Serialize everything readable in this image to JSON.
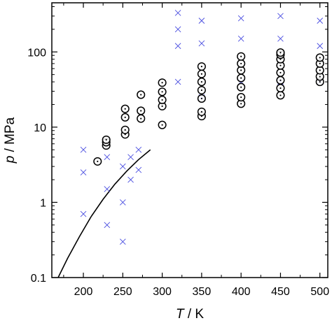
{
  "chart_data": {
    "type": "scatter",
    "title": "",
    "xlabel_symbol": "T",
    "xlabel_unit": " / K",
    "ylabel_symbol": "p",
    "ylabel_unit": " / MPa",
    "xlim": [
      160,
      510
    ],
    "ylim": [
      0.1,
      450
    ],
    "yscale": "log",
    "grid": false,
    "legend": "none",
    "x_ticks": [
      200,
      250,
      300,
      350,
      400,
      450,
      500
    ],
    "x_tick_labels": [
      "200",
      "250",
      "300",
      "350",
      "400",
      "450",
      "500"
    ],
    "y_ticks": [
      0.1,
      1,
      10,
      100
    ],
    "y_tick_labels": [
      "0.1",
      "1",
      "10",
      "100"
    ],
    "colors": {
      "cross": "#4a4ee0",
      "circle": "#000000",
      "curve": "#000000",
      "axes": "#000000"
    },
    "circle_points": [
      {
        "x": 218,
        "y": 3.5
      },
      {
        "x": 229,
        "y": 5.7
      },
      {
        "x": 229,
        "y": 6.3
      },
      {
        "x": 229,
        "y": 6.8
      },
      {
        "x": 253,
        "y": 8.0
      },
      {
        "x": 253,
        "y": 9.2
      },
      {
        "x": 253,
        "y": 13.5
      },
      {
        "x": 253,
        "y": 17.5
      },
      {
        "x": 273,
        "y": 13.0
      },
      {
        "x": 273,
        "y": 16.5
      },
      {
        "x": 273,
        "y": 27.0
      },
      {
        "x": 300,
        "y": 10.7
      },
      {
        "x": 300,
        "y": 19.0
      },
      {
        "x": 300,
        "y": 23.0
      },
      {
        "x": 300,
        "y": 29.5
      },
      {
        "x": 300,
        "y": 39.0
      },
      {
        "x": 350,
        "y": 14.0
      },
      {
        "x": 350,
        "y": 16.0
      },
      {
        "x": 350,
        "y": 24.0
      },
      {
        "x": 350,
        "y": 31.0
      },
      {
        "x": 350,
        "y": 40.0
      },
      {
        "x": 350,
        "y": 51.0
      },
      {
        "x": 350,
        "y": 64.0
      },
      {
        "x": 400,
        "y": 20.5
      },
      {
        "x": 400,
        "y": 25.0
      },
      {
        "x": 400,
        "y": 34.0
      },
      {
        "x": 400,
        "y": 45.0
      },
      {
        "x": 400,
        "y": 57.0
      },
      {
        "x": 400,
        "y": 70.0
      },
      {
        "x": 400,
        "y": 87.0
      },
      {
        "x": 450,
        "y": 26.5
      },
      {
        "x": 450,
        "y": 33.0
      },
      {
        "x": 450,
        "y": 42.0
      },
      {
        "x": 450,
        "y": 53.0
      },
      {
        "x": 450,
        "y": 66.0
      },
      {
        "x": 450,
        "y": 80.0
      },
      {
        "x": 450,
        "y": 92.0
      },
      {
        "x": 450,
        "y": 98.0
      },
      {
        "x": 500,
        "y": 40.0
      },
      {
        "x": 500,
        "y": 47.0
      },
      {
        "x": 500,
        "y": 57.0
      },
      {
        "x": 500,
        "y": 70.0
      },
      {
        "x": 500,
        "y": 84.0
      }
    ],
    "cross_points": [
      {
        "x": 320,
        "y": 40
      },
      {
        "x": 320,
        "y": 120
      },
      {
        "x": 320,
        "y": 200
      },
      {
        "x": 320,
        "y": 330
      },
      {
        "x": 350,
        "y": 25
      },
      {
        "x": 350,
        "y": 130
      },
      {
        "x": 350,
        "y": 260
      },
      {
        "x": 400,
        "y": 40
      },
      {
        "x": 400,
        "y": 150
      },
      {
        "x": 400,
        "y": 280
      },
      {
        "x": 450,
        "y": 40
      },
      {
        "x": 450,
        "y": 150
      },
      {
        "x": 450,
        "y": 300
      },
      {
        "x": 500,
        "y": 40
      },
      {
        "x": 500,
        "y": 120
      },
      {
        "x": 500,
        "y": 260
      },
      {
        "x": 200,
        "y": 5
      },
      {
        "x": 200,
        "y": 2.5
      },
      {
        "x": 200,
        "y": 0.7
      },
      {
        "x": 230,
        "y": 4
      },
      {
        "x": 230,
        "y": 1.5
      },
      {
        "x": 230,
        "y": 0.5
      },
      {
        "x": 250,
        "y": 3
      },
      {
        "x": 250,
        "y": 1
      },
      {
        "x": 250,
        "y": 0.3
      },
      {
        "x": 260,
        "y": 4
      },
      {
        "x": 260,
        "y": 2
      },
      {
        "x": 270,
        "y": 5
      },
      {
        "x": 270,
        "y": 2.7
      }
    ],
    "curve": [
      {
        "x": 168,
        "y": 0.1
      },
      {
        "x": 180,
        "y": 0.18
      },
      {
        "x": 195,
        "y": 0.35
      },
      {
        "x": 210,
        "y": 0.65
      },
      {
        "x": 225,
        "y": 1.1
      },
      {
        "x": 240,
        "y": 1.75
      },
      {
        "x": 255,
        "y": 2.6
      },
      {
        "x": 270,
        "y": 3.7
      },
      {
        "x": 285,
        "y": 5.0
      }
    ]
  }
}
